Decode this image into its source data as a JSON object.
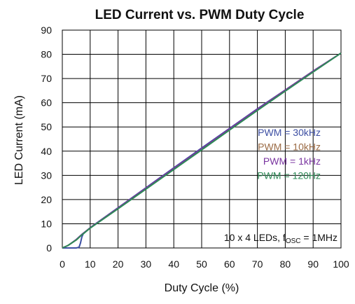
{
  "chart_data": {
    "type": "line",
    "title": "LED Current vs. PWM Duty Cycle",
    "xlabel": "Duty Cycle (%)",
    "ylabel": "LED Current (mA)",
    "xlim": [
      0,
      100
    ],
    "ylim": [
      0,
      90
    ],
    "xticks": [
      0,
      10,
      20,
      30,
      40,
      50,
      60,
      70,
      80,
      90,
      100
    ],
    "yticks": [
      0,
      10,
      20,
      30,
      40,
      50,
      60,
      70,
      80,
      90
    ],
    "grid": true,
    "legend_position": "right",
    "annotation": {
      "prefix": "10 x 4 LEDs, f",
      "subscript": "OSC",
      "suffix": " = 1MHz"
    },
    "series": [
      {
        "name": "PWM = 30kHz",
        "color": "#3d4fa3",
        "x": [
          0,
          5,
          6,
          6.5,
          7,
          7.5,
          10,
          20,
          30,
          40,
          50,
          60,
          70,
          80,
          90,
          100
        ],
        "y": [
          0,
          0,
          0.3,
          2,
          4.5,
          5.8,
          8.4,
          16.6,
          24.9,
          33.1,
          41.3,
          49.4,
          57.5,
          65.3,
          73.1,
          80.5
        ]
      },
      {
        "name": "PWM = 10kHz",
        "color": "#9b6b45",
        "x": [
          0,
          2,
          5,
          7,
          10,
          20,
          30,
          40,
          50,
          60,
          70,
          80,
          90,
          100
        ],
        "y": [
          0,
          1,
          3.3,
          5.5,
          8.3,
          16.4,
          24.6,
          32.8,
          40.9,
          49.1,
          57.2,
          65.2,
          73,
          80.5
        ]
      },
      {
        "name": "PWM = 1kHz",
        "color": "#7a35a0",
        "x": [
          0,
          2,
          5,
          7,
          10,
          20,
          30,
          40,
          50,
          60,
          70,
          80,
          90,
          100
        ],
        "y": [
          0,
          1,
          3.5,
          5.6,
          8.3,
          16.5,
          24.7,
          32.9,
          41,
          49.2,
          57.3,
          65.2,
          73,
          80.5
        ]
      },
      {
        "name": "PWM = 120Hz",
        "color": "#2e8a57",
        "x": [
          0,
          2,
          5,
          7,
          10,
          20,
          30,
          40,
          50,
          60,
          70,
          80,
          90,
          100
        ],
        "y": [
          0,
          1,
          3.3,
          5.4,
          8.2,
          16.2,
          24.3,
          32.4,
          40.5,
          48.7,
          56.8,
          64.8,
          72.7,
          80.5
        ]
      }
    ]
  }
}
